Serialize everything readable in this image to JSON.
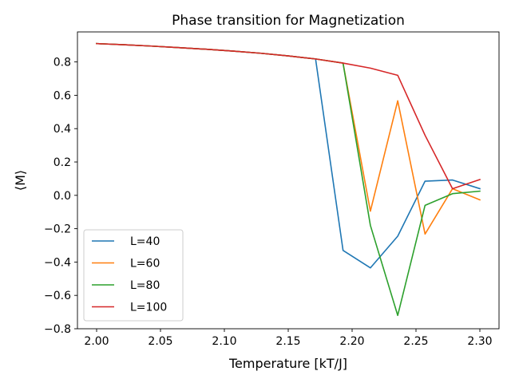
{
  "chart_data": {
    "type": "line",
    "title": "Phase transition for Magnetization",
    "xlabel": "Temperature [kT/J]",
    "ylabel": "⟨M⟩",
    "xlim": [
      1.985,
      2.315
    ],
    "ylim": [
      -0.8,
      0.98
    ],
    "x_ticks": [
      2.0,
      2.05,
      2.1,
      2.15,
      2.2,
      2.25,
      2.3
    ],
    "x_tick_labels": [
      "2.00",
      "2.05",
      "2.10",
      "2.15",
      "2.20",
      "2.25",
      "2.30"
    ],
    "y_ticks": [
      -0.8,
      -0.6,
      -0.4,
      -0.2,
      0.0,
      0.2,
      0.4,
      0.6,
      0.8
    ],
    "y_tick_labels": [
      "−0.8",
      "−0.6",
      "−0.4",
      "−0.2",
      "0.0",
      "0.2",
      "0.4",
      "0.6",
      "0.8"
    ],
    "grid": false,
    "legend_position": "lower-left",
    "x": [
      2.0,
      2.0214,
      2.0429,
      2.0643,
      2.0857,
      2.1071,
      2.1286,
      2.15,
      2.1714,
      2.1929,
      2.2143,
      2.2357,
      2.2571,
      2.2786,
      2.3
    ],
    "series": [
      {
        "name": "L=40",
        "color": "#1f77b4",
        "values": [
          0.91,
          0.903,
          0.895,
          0.886,
          0.876,
          0.865,
          0.852,
          0.836,
          0.818,
          -0.33,
          -0.435,
          -0.245,
          0.085,
          0.092,
          0.04
        ]
      },
      {
        "name": "L=60",
        "color": "#ff7f0e",
        "values": [
          0.91,
          0.903,
          0.895,
          0.886,
          0.876,
          0.865,
          0.852,
          0.836,
          0.818,
          0.793,
          -0.095,
          0.567,
          -0.232,
          0.04,
          -0.027
        ]
      },
      {
        "name": "L=80",
        "color": "#2ca02c",
        "values": [
          0.91,
          0.903,
          0.895,
          0.886,
          0.876,
          0.865,
          0.852,
          0.836,
          0.818,
          0.793,
          -0.18,
          -0.72,
          -0.06,
          0.01,
          0.025
        ]
      },
      {
        "name": "L=100",
        "color": "#d62728",
        "values": [
          0.91,
          0.903,
          0.895,
          0.886,
          0.876,
          0.865,
          0.852,
          0.836,
          0.818,
          0.793,
          0.763,
          0.72,
          0.36,
          0.04,
          0.095
        ]
      }
    ]
  }
}
